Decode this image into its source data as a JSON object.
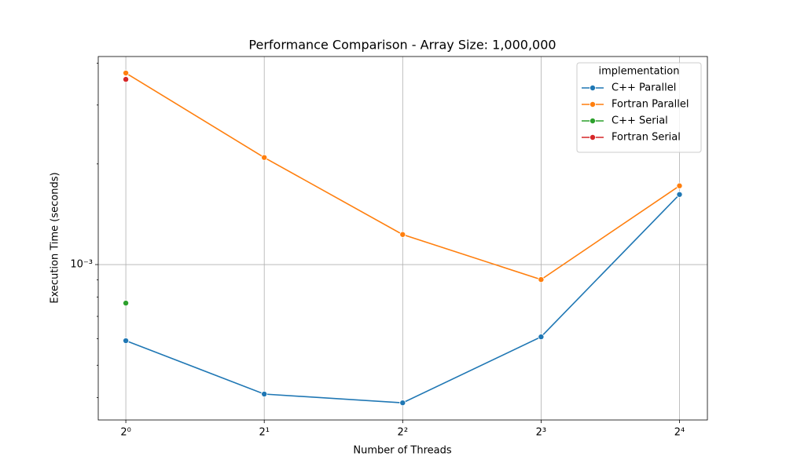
{
  "chart_data": {
    "type": "line",
    "title": "Performance Comparison - Array Size: 1,000,000",
    "x_label": "Number of Threads",
    "y_label": "Execution Time (seconds)",
    "x": [
      1,
      2,
      4,
      8,
      16
    ],
    "xlim": [
      0.871,
      18.4
    ],
    "ylim": [
      0.000343,
      0.00419
    ],
    "x_log_base": 2,
    "y_log_base": 10,
    "xticks": [
      {
        "value": 1,
        "label": "2⁰"
      },
      {
        "value": 2,
        "label": "2¹"
      },
      {
        "value": 4,
        "label": "2²"
      },
      {
        "value": 8,
        "label": "2³"
      },
      {
        "value": 16,
        "label": "2⁴"
      }
    ],
    "yticks": [
      {
        "value": 0.001,
        "label": "10⁻³"
      }
    ],
    "yminorticks": [
      0.0004,
      0.0005,
      0.0006,
      0.0007,
      0.0008,
      0.0009,
      0.002,
      0.003,
      0.004
    ],
    "grid": true,
    "legend_title": "implementation",
    "legend_position": "upper right",
    "series": [
      {
        "name": "C++ Parallel",
        "color": "#1f77b4",
        "values": [
          0.000592,
          0.00041,
          0.000386,
          0.000608,
          0.00162
        ]
      },
      {
        "name": "Fortran Parallel",
        "color": "#ff7f0e",
        "values": [
          0.00374,
          0.00209,
          0.00123,
          0.000902,
          0.00172
        ]
      },
      {
        "name": "C++ Serial",
        "color": "#2ca02c",
        "values": [
          0.000767,
          null,
          null,
          null,
          null
        ]
      },
      {
        "name": "Fortran Serial",
        "color": "#d62728",
        "values": [
          0.00358,
          null,
          null,
          null,
          null
        ]
      }
    ]
  }
}
